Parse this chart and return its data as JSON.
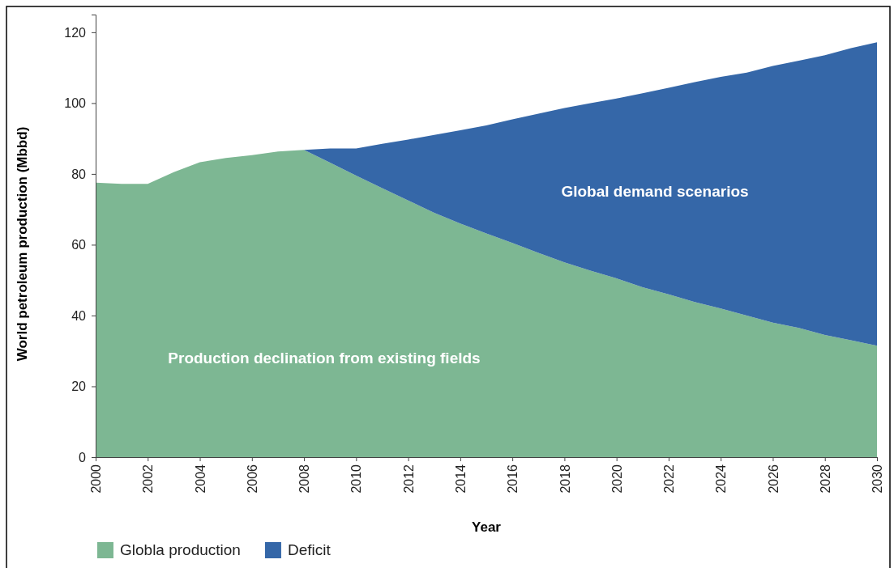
{
  "chart_data": {
    "type": "area",
    "stacked": true,
    "xlabel": "Year",
    "ylabel": "World petroleum production (Mbbd)",
    "x": [
      2000,
      2001,
      2002,
      2003,
      2004,
      2005,
      2006,
      2007,
      2008,
      2009,
      2010,
      2011,
      2012,
      2013,
      2014,
      2015,
      2016,
      2017,
      2018,
      2019,
      2020,
      2021,
      2022,
      2023,
      2024,
      2025,
      2026,
      2027,
      2028,
      2029,
      2030
    ],
    "series": [
      {
        "name": "Globla production",
        "color": "#7db793",
        "values": [
          77.5,
          77.2,
          77.2,
          80.5,
          83.3,
          84.5,
          85.3,
          86.3,
          86.8,
          83.2,
          79.5,
          76,
          72.5,
          69,
          66,
          63.2,
          60.5,
          57.7,
          55,
          52.7,
          50.5,
          48,
          46,
          43.8,
          42,
          40,
          38,
          36.5,
          34.5,
          33,
          31.5
        ]
      },
      {
        "name": "Deficit",
        "color": "#3567a8",
        "values": [
          0,
          0,
          0,
          0,
          0,
          0,
          0,
          0,
          0,
          4.0,
          7.7,
          12.5,
          17.2,
          22.0,
          26.3,
          30.5,
          34.9,
          39.3,
          43.6,
          47.3,
          50.8,
          54.8,
          58.3,
          62.1,
          65.4,
          68.6,
          72.5,
          75.5,
          79.0,
          82.5,
          85.7
        ]
      }
    ],
    "xlim": [
      2000,
      2030
    ],
    "xticks": [
      2000,
      2002,
      2004,
      2006,
      2008,
      2010,
      2012,
      2014,
      2016,
      2018,
      2020,
      2022,
      2024,
      2026,
      2028,
      2030
    ],
    "ylim": [
      0,
      125
    ],
    "yticks": [
      0,
      20,
      40,
      60,
      80,
      100,
      120
    ],
    "annotations": [
      "Global demand scenarios",
      "Production declination from existing fields"
    ],
    "legend": "bottom left",
    "grid": false
  }
}
